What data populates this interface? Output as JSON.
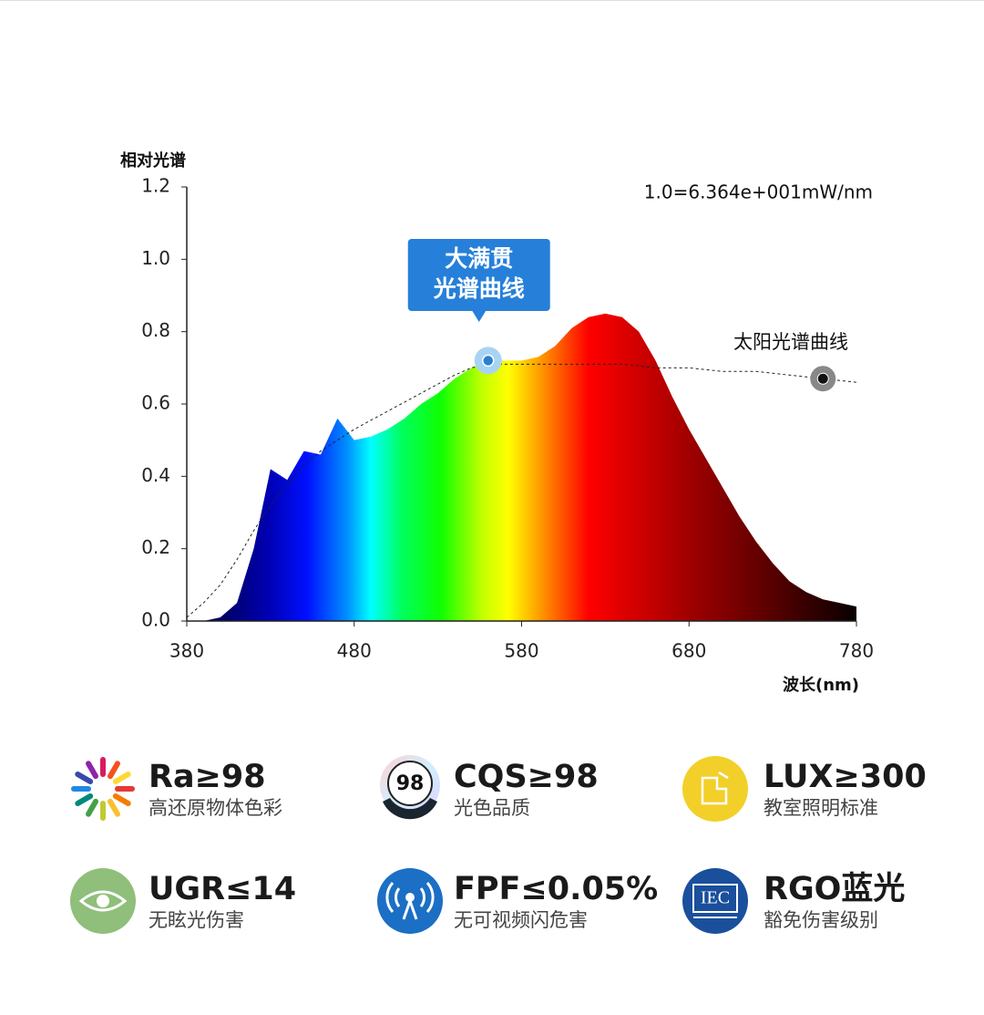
{
  "chart_data": {
    "type": "area",
    "y_label": "相对光谱",
    "x_label": "波长(nm)",
    "unit_note": "1.0=6.364e+001mW/nm",
    "x": [
      380,
      390,
      400,
      410,
      420,
      430,
      440,
      450,
      460,
      470,
      480,
      490,
      500,
      510,
      520,
      530,
      540,
      550,
      560,
      570,
      580,
      590,
      600,
      610,
      620,
      630,
      640,
      650,
      660,
      670,
      680,
      690,
      700,
      710,
      720,
      730,
      740,
      750,
      760,
      770,
      780
    ],
    "series": [
      {
        "label": [
          "大满贯",
          "光谱曲线"
        ],
        "values": [
          0,
          0,
          0.01,
          0.05,
          0.2,
          0.42,
          0.39,
          0.47,
          0.46,
          0.56,
          0.5,
          0.51,
          0.53,
          0.56,
          0.6,
          0.63,
          0.67,
          0.7,
          0.72,
          0.72,
          0.72,
          0.73,
          0.76,
          0.81,
          0.84,
          0.85,
          0.84,
          0.8,
          0.72,
          0.62,
          0.53,
          0.45,
          0.37,
          0.29,
          0.22,
          0.16,
          0.11,
          0.08,
          0.06,
          0.05,
          0.04
        ]
      },
      {
        "name": "太阳光谱曲线",
        "color": "#222222",
        "dashed": true,
        "values": [
          0.01,
          0.05,
          0.1,
          0.17,
          0.25,
          0.32,
          0.38,
          0.43,
          0.47,
          0.5,
          0.53,
          0.555,
          0.58,
          0.605,
          0.63,
          0.655,
          0.68,
          0.7,
          0.71,
          0.71,
          0.71,
          0.71,
          0.71,
          0.71,
          0.71,
          0.71,
          0.71,
          0.705,
          0.7,
          0.7,
          0.7,
          0.695,
          0.69,
          0.69,
          0.69,
          0.685,
          0.68,
          0.675,
          0.67,
          0.665,
          0.66
        ]
      }
    ],
    "xlim": [
      380,
      780
    ],
    "xticks": [
      380,
      480,
      580,
      680,
      780
    ],
    "ylim": [
      0,
      1.2
    ],
    "yticks": [
      {
        "value": 0,
        "label": "0.0"
      },
      {
        "value": 0.2,
        "label": "0.2"
      },
      {
        "value": 0.4,
        "label": "0.4"
      },
      {
        "value": 0.6,
        "label": "0.6"
      },
      {
        "value": 0.8,
        "label": "0.8"
      },
      {
        "value": 1,
        "label": "1.0"
      },
      {
        "value": 1.2,
        "label": "1.2"
      }
    ]
  },
  "features": [
    {
      "title": "Ra≥98",
      "subtitle": "高还原物体色彩"
    },
    {
      "title": "CQS≥98",
      "subtitle": "光色品质",
      "badge": "98"
    },
    {
      "title": "LUX≥300",
      "subtitle": "教室照明标准"
    },
    {
      "title": "UGR≤14",
      "subtitle": "无眩光伤害"
    },
    {
      "title": "FPF≤0.05%",
      "subtitle": "无可视频闪危害"
    },
    {
      "title": "RGO蓝光",
      "subtitle": "豁免伤害级别",
      "badge": "IEC"
    }
  ]
}
